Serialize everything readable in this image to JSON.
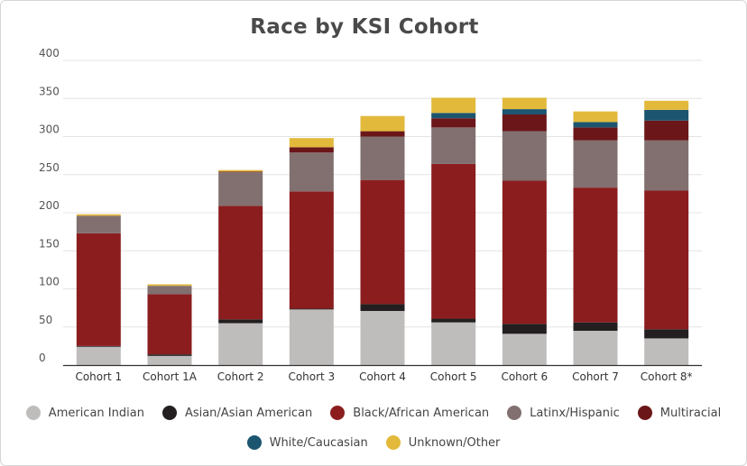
{
  "chart_data": {
    "type": "bar",
    "stacked": true,
    "title": "Race by KSI Cohort",
    "xlabel": "",
    "ylabel": "",
    "ylim": [
      0,
      400
    ],
    "yticks": [
      "0",
      "50",
      "100",
      "150",
      "200",
      "250",
      "300",
      "350",
      "400"
    ],
    "grid": true,
    "legend_position": "bottom",
    "categories": [
      "Cohort 1",
      "Cohort 1A",
      "Cohort 2",
      "Cohort 3",
      "Cohort 4",
      "Cohort 5",
      "Cohort 6",
      "Cohort 7",
      "Cohort 8*"
    ],
    "series": [
      {
        "name": "American Indian",
        "color": "#bfbcbc",
        "values": [
          24,
          12,
          55,
          73,
          71,
          56,
          41,
          45,
          35
        ]
      },
      {
        "name": "Asian/Asian American",
        "color": "#231f20",
        "values": [
          1,
          2,
          5,
          1,
          9,
          5,
          13,
          11,
          12
        ]
      },
      {
        "name": "Black/African American",
        "color": "#8b1d1f",
        "values": [
          148,
          79,
          149,
          154,
          163,
          203,
          188,
          177,
          182
        ]
      },
      {
        "name": "Latinx/Hispanic",
        "color": "#81706f",
        "values": [
          23,
          11,
          44,
          51,
          57,
          48,
          65,
          62,
          66
        ]
      },
      {
        "name": "Multiracial",
        "color": "#6b1619",
        "values": [
          0,
          0,
          1,
          7,
          7,
          12,
          22,
          17,
          26
        ]
      },
      {
        "name": "White/Caucasian",
        "color": "#1c5570",
        "values": [
          0,
          0,
          0,
          0,
          0,
          7,
          7,
          7,
          14
        ]
      },
      {
        "name": "Unknown/Other",
        "color": "#e2b93b",
        "values": [
          2,
          2,
          2,
          12,
          20,
          20,
          15,
          14,
          12
        ]
      }
    ]
  }
}
